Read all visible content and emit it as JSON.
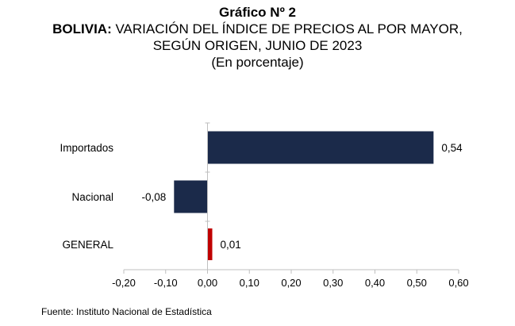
{
  "title": {
    "line1": "Gráfico Nº 2",
    "country": "BOLIVIA:",
    "line2_rest": " VARIACIÓN DEL ÍNDICE DE PRECIOS AL POR MAYOR,",
    "line3": "SEGÚN ORIGEN, JUNIO DE 2023",
    "line4": "(En porcentaje)"
  },
  "source": "Fuente: Instituto Nacional de Estadística",
  "colors": {
    "bar_main": "#1b2a4a",
    "bar_general": "#c00000"
  },
  "chart_data": {
    "type": "bar",
    "orientation": "horizontal",
    "categories": [
      "Importados",
      "Nacional",
      "GENERAL"
    ],
    "values": [
      0.54,
      -0.08,
      0.01
    ],
    "value_labels": [
      "0,54",
      "-0,08",
      "0,01"
    ],
    "xlim": [
      -0.2,
      0.6
    ],
    "xticks": [
      -0.2,
      -0.1,
      0.0,
      0.1,
      0.2,
      0.3,
      0.4,
      0.5,
      0.6
    ],
    "xtick_labels": [
      "-0,20",
      "-0,10",
      "0,00",
      "0,10",
      "0,20",
      "0,30",
      "0,40",
      "0,50",
      "0,60"
    ],
    "bar_colors": [
      "#1b2a4a",
      "#1b2a4a",
      "#c00000"
    ],
    "grid": false
  }
}
